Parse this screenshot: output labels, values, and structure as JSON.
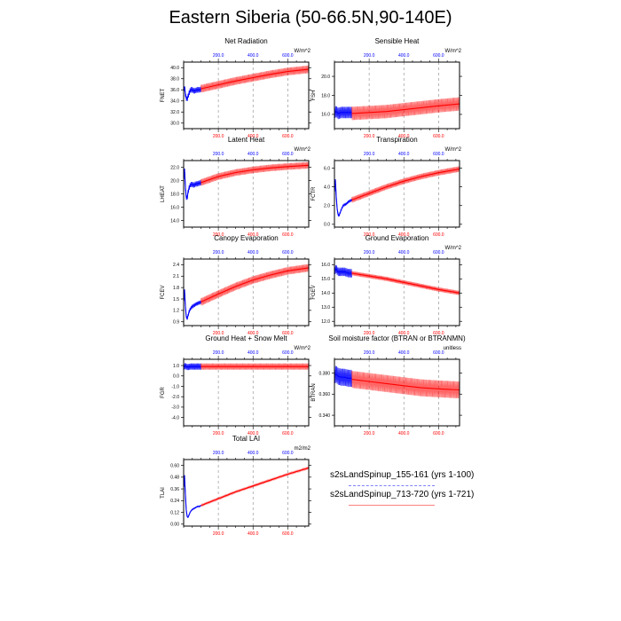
{
  "title": "Eastern Siberia (50-66.5N,90-140E)",
  "colors": {
    "run1": "#0000ff",
    "run2": "#ff0000",
    "run2_light": "#ff8080",
    "run1_light": "#8080ff",
    "grid": "#888888"
  },
  "legend": {
    "run1": "s2sLandSpinup_155-161 (yrs 1-100)",
    "run2": "s2sLandSpinup_713-720 (yrs 1-721)"
  },
  "chart_data": [
    {
      "type": "line",
      "title": "Net Radiation",
      "ylabel": "FNET",
      "units": "W/m^2",
      "xlim": [
        0,
        721
      ],
      "xticks": [
        200.0,
        400.0,
        600.0
      ],
      "xtick_labels": [
        "200.0",
        "400.0",
        "600.0"
      ],
      "ylim": [
        29.0,
        41.0
      ],
      "yticks": [
        30.0,
        32.0,
        34.0,
        36.0,
        38.0,
        40.0
      ],
      "ytick_labels": [
        "30.0",
        "32.0",
        "34.0",
        "36.0",
        "38.0",
        "40.0"
      ],
      "grid": "vertical dashed",
      "series": [
        {
          "name": "s2sLandSpinup_155-161 (yrs 1-100)",
          "x": [
            1,
            5,
            10,
            15,
            20,
            25,
            30,
            40,
            50,
            60,
            70,
            80,
            90,
            100
          ],
          "y": [
            35.8,
            36.6,
            35.2,
            34.5,
            34.3,
            34.8,
            35.3,
            36.0,
            36.0,
            35.8,
            35.9,
            36.0,
            36.0,
            36.1
          ],
          "spread": 0.5
        },
        {
          "name": "s2sLandSpinup_713-720 (yrs 1-721)",
          "x": [
            100,
            200,
            300,
            400,
            500,
            600,
            721
          ],
          "y": [
            36.2,
            36.9,
            37.6,
            38.2,
            38.8,
            39.3,
            39.7
          ],
          "spread": 0.7
        }
      ]
    },
    {
      "type": "line",
      "title": "Sensible Heat",
      "ylabel": "FSH",
      "units": "W/m^2",
      "xlim": [
        0,
        721
      ],
      "xticks": [
        200.0,
        400.0,
        600.0
      ],
      "xtick_labels": [
        "200.0",
        "400.0",
        "600.0"
      ],
      "ylim": [
        14.5,
        21.5
      ],
      "yticks": [
        16.0,
        18.0,
        20.0
      ],
      "ytick_labels": [
        "16.0",
        "18.0",
        "20.0"
      ],
      "grid": "vertical dashed",
      "series": [
        {
          "name": "s2sLandSpinup_155-161 (yrs 1-100)",
          "x": [
            1,
            10,
            20,
            40,
            60,
            80,
            100
          ],
          "y": [
            16.2,
            16.3,
            16.1,
            16.2,
            16.2,
            16.2,
            16.2
          ],
          "spread": 0.6
        },
        {
          "name": "s2sLandSpinup_713-720 (yrs 1-721)",
          "x": [
            100,
            200,
            300,
            400,
            500,
            600,
            721
          ],
          "y": [
            16.1,
            16.2,
            16.3,
            16.5,
            16.7,
            16.9,
            17.1
          ],
          "spread": 0.7
        }
      ]
    },
    {
      "type": "line",
      "title": "Latent Heat",
      "ylabel": "LHEAT",
      "units": "W/m^2",
      "xlim": [
        0,
        721
      ],
      "xticks": [
        200.0,
        400.0,
        600.0
      ],
      "xtick_labels": [
        "200.0",
        "400.0",
        "600.0"
      ],
      "ylim": [
        13.0,
        23.0
      ],
      "yticks": [
        14.0,
        16.0,
        18.0,
        20.0,
        22.0
      ],
      "ytick_labels": [
        "14.0",
        "16.0",
        "18.0",
        "20.0",
        "22.0"
      ],
      "grid": "vertical dashed",
      "series": [
        {
          "name": "s2sLandSpinup_155-161 (yrs 1-100)",
          "x": [
            1,
            5,
            10,
            15,
            20,
            25,
            30,
            40,
            50,
            60,
            70,
            80,
            90,
            100
          ],
          "y": [
            20.2,
            21.8,
            19.0,
            17.5,
            17.3,
            18.2,
            18.8,
            19.4,
            19.4,
            19.3,
            19.5,
            19.5,
            19.6,
            19.7
          ],
          "spread": 0.4
        },
        {
          "name": "s2sLandSpinup_713-720 (yrs 1-721)",
          "x": [
            100,
            200,
            300,
            400,
            500,
            600,
            721
          ],
          "y": [
            19.7,
            20.6,
            21.2,
            21.6,
            21.9,
            22.1,
            22.3
          ],
          "spread": 0.5
        }
      ]
    },
    {
      "type": "line",
      "title": "Transpiration",
      "ylabel": "FCTR",
      "units": "W/m^2",
      "xlim": [
        0,
        721
      ],
      "xticks": [
        200.0,
        400.0,
        600.0
      ],
      "xtick_labels": [
        "200.0",
        "400.0",
        "600.0"
      ],
      "ylim": [
        -0.3,
        6.8
      ],
      "yticks": [
        0.0,
        2.0,
        4.0,
        6.0
      ],
      "ytick_labels": [
        "0.0",
        "2.0",
        "4.0",
        "6.0"
      ],
      "grid": "vertical dashed",
      "series": [
        {
          "name": "s2sLandSpinup_155-161 (yrs 1-100)",
          "x": [
            1,
            5,
            10,
            15,
            20,
            25,
            30,
            40,
            50,
            60,
            70,
            80,
            90,
            100
          ],
          "y": [
            3.5,
            4.8,
            3.0,
            1.8,
            1.1,
            0.9,
            1.1,
            1.6,
            2.0,
            2.1,
            2.2,
            2.4,
            2.5,
            2.6
          ],
          "spread": 0.15
        },
        {
          "name": "s2sLandSpinup_713-720 (yrs 1-721)",
          "x": [
            100,
            200,
            300,
            400,
            500,
            600,
            721
          ],
          "y": [
            2.6,
            3.3,
            4.0,
            4.6,
            5.1,
            5.5,
            5.9
          ],
          "spread": 0.3
        }
      ]
    },
    {
      "type": "line",
      "title": "Canopy Evaporation",
      "ylabel": "FCEV",
      "units": "",
      "xlim": [
        0,
        721
      ],
      "xticks": [
        200.0,
        400.0,
        600.0
      ],
      "xtick_labels": [
        "200.0",
        "400.0",
        "600.0"
      ],
      "ylim": [
        0.8,
        2.55
      ],
      "yticks": [
        0.9,
        1.2,
        1.5,
        1.8,
        2.1,
        2.4
      ],
      "ytick_labels": [
        "0.9",
        "1.2",
        "1.5",
        "1.8",
        "2.1",
        "2.4"
      ],
      "grid": "vertical dashed",
      "series": [
        {
          "name": "s2sLandSpinup_155-161 (yrs 1-100)",
          "x": [
            1,
            5,
            10,
            15,
            20,
            25,
            30,
            40,
            50,
            60,
            70,
            80,
            90,
            100
          ],
          "y": [
            1.45,
            1.75,
            1.3,
            1.05,
            0.98,
            1.05,
            1.15,
            1.25,
            1.3,
            1.33,
            1.36,
            1.38,
            1.4,
            1.42
          ],
          "spread": 0.05
        },
        {
          "name": "s2sLandSpinup_713-720 (yrs 1-721)",
          "x": [
            100,
            200,
            300,
            400,
            500,
            600,
            721
          ],
          "y": [
            1.42,
            1.63,
            1.83,
            2.0,
            2.13,
            2.24,
            2.32
          ],
          "spread": 0.1
        }
      ]
    },
    {
      "type": "line",
      "title": "Ground Evaporation",
      "ylabel": "FGEV",
      "units": "W/m^2",
      "xlim": [
        0,
        721
      ],
      "xticks": [
        200.0,
        400.0,
        600.0
      ],
      "xtick_labels": [
        "200.0",
        "400.0",
        "600.0"
      ],
      "ylim": [
        11.7,
        16.4
      ],
      "yticks": [
        12.0,
        13.0,
        14.0,
        15.0,
        16.0
      ],
      "ytick_labels": [
        "12.0",
        "13.0",
        "14.0",
        "15.0",
        "16.0"
      ],
      "grid": "vertical dashed",
      "series": [
        {
          "name": "s2sLandSpinup_155-161 (yrs 1-100)",
          "x": [
            1,
            10,
            20,
            40,
            60,
            80,
            100
          ],
          "y": [
            15.6,
            15.7,
            15.5,
            15.5,
            15.5,
            15.4,
            15.4
          ],
          "spread": 0.3
        },
        {
          "name": "s2sLandSpinup_713-720 (yrs 1-721)",
          "x": [
            100,
            200,
            300,
            400,
            500,
            600,
            721
          ],
          "y": [
            15.4,
            15.2,
            15.0,
            14.75,
            14.5,
            14.25,
            14.0
          ],
          "spread": 0.15
        }
      ]
    },
    {
      "type": "line",
      "title": "Ground Heat + Snow Melt",
      "ylabel": "FGR",
      "units": "W/m^2",
      "xlim": [
        0,
        721
      ],
      "xticks": [
        200.0,
        400.0,
        600.0
      ],
      "xtick_labels": [
        "200.0",
        "400.0",
        "600.0"
      ],
      "ylim": [
        -4.8,
        1.6
      ],
      "yticks": [
        -4.0,
        -3.0,
        -2.0,
        -1.0,
        0.0,
        1.0
      ],
      "ytick_labels": [
        "-4.0",
        "-3.0",
        "-2.0",
        "-1.0",
        "0.0",
        "1.0"
      ],
      "grid": "vertical dashed",
      "series": [
        {
          "name": "s2sLandSpinup_155-161 (yrs 1-100)",
          "x": [
            1,
            10,
            20,
            40,
            60,
            80,
            100
          ],
          "y": [
            0.9,
            0.95,
            0.85,
            0.9,
            0.9,
            0.9,
            0.9
          ],
          "spread": 0.3
        },
        {
          "name": "s2sLandSpinup_713-720 (yrs 1-721)",
          "x": [
            100,
            200,
            300,
            400,
            500,
            600,
            721
          ],
          "y": [
            0.9,
            0.9,
            0.9,
            0.9,
            0.9,
            0.9,
            0.9
          ],
          "spread": 0.3
        }
      ]
    },
    {
      "type": "line",
      "title": "Soil moisture factor (BTRAN or BTRANMN)",
      "ylabel": "BTRAN",
      "units": "unitless",
      "xlim": [
        0,
        721
      ],
      "xticks": [
        200.0,
        400.0,
        600.0
      ],
      "xtick_labels": [
        "200.0",
        "400.0",
        "600.0"
      ],
      "ylim": [
        0.33,
        0.393
      ],
      "yticks": [
        0.34,
        0.36,
        0.38
      ],
      "ytick_labels": [
        "0.340",
        "0.360",
        "0.380"
      ],
      "grid": "vertical dashed",
      "series": [
        {
          "name": "s2sLandSpinup_155-161 (yrs 1-100)",
          "x": [
            1,
            10,
            20,
            40,
            60,
            80,
            100
          ],
          "y": [
            0.378,
            0.379,
            0.377,
            0.376,
            0.376,
            0.375,
            0.375
          ],
          "spread": 0.008
        },
        {
          "name": "s2sLandSpinup_713-720 (yrs 1-721)",
          "x": [
            100,
            200,
            300,
            400,
            500,
            600,
            721
          ],
          "y": [
            0.374,
            0.372,
            0.37,
            0.368,
            0.366,
            0.365,
            0.364
          ],
          "spread": 0.008
        }
      ]
    },
    {
      "type": "line",
      "title": "Total LAI",
      "ylabel": "TLAI",
      "units": "m2/m2",
      "xlim": [
        0,
        721
      ],
      "xticks": [
        200.0,
        400.0,
        600.0
      ],
      "xtick_labels": [
        "200.0",
        "400.0",
        "600.0"
      ],
      "ylim": [
        -0.02,
        0.66
      ],
      "yticks": [
        0.0,
        0.12,
        0.24,
        0.36,
        0.48,
        0.6
      ],
      "ytick_labels": [
        "0.00",
        "0.12",
        "0.24",
        "0.36",
        "0.48",
        "0.60"
      ],
      "grid": "vertical dashed",
      "series": [
        {
          "name": "s2sLandSpinup_155-161 (yrs 1-100)",
          "x": [
            1,
            5,
            10,
            15,
            20,
            25,
            30,
            40,
            50,
            60,
            70,
            80,
            90,
            100
          ],
          "y": [
            0.38,
            0.5,
            0.3,
            0.15,
            0.08,
            0.07,
            0.09,
            0.13,
            0.15,
            0.16,
            0.17,
            0.18,
            0.18,
            0.19
          ],
          "spread": 0.005
        },
        {
          "name": "s2sLandSpinup_713-720 (yrs 1-721)",
          "x": [
            100,
            200,
            300,
            400,
            500,
            600,
            721
          ],
          "y": [
            0.19,
            0.26,
            0.33,
            0.39,
            0.45,
            0.51,
            0.575
          ],
          "spread": 0.008
        }
      ]
    }
  ]
}
